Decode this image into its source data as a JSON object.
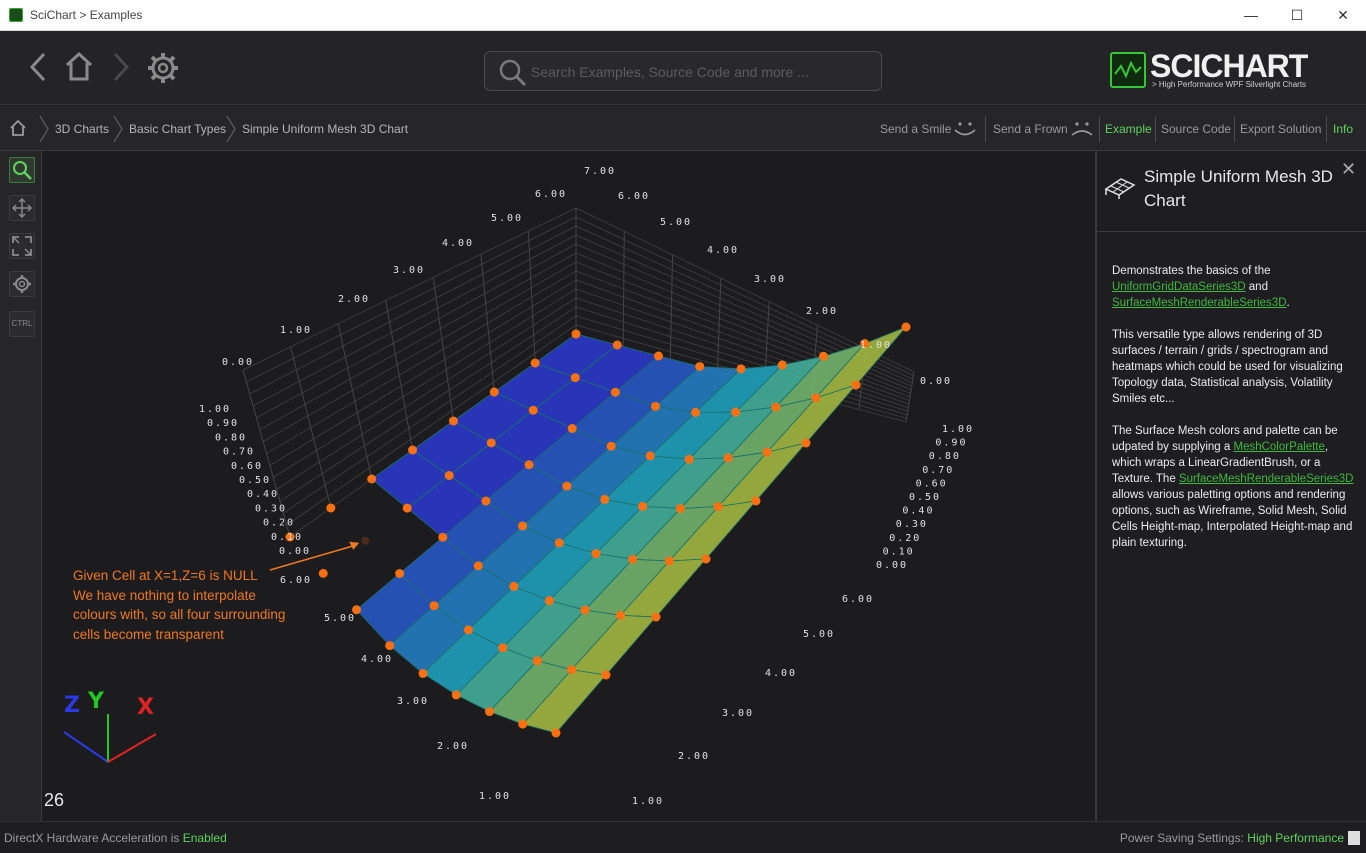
{
  "window": {
    "title": "SciChart > Examples",
    "minimize": "—",
    "maximize": "☐",
    "close": "✕"
  },
  "search": {
    "placeholder": "Search Examples, Source Code and more ..."
  },
  "logo": {
    "word": "SCICHART",
    "tagline": "> High Performance WPF Silverlight Charts"
  },
  "breadcrumb": {
    "items": [
      "3D Charts",
      "Basic Chart Types",
      "Simple Uniform Mesh 3D Chart"
    ]
  },
  "actions": {
    "send_smile": "Send a Smile",
    "send_frown": "Send a Frown",
    "example": "Example",
    "source_code": "Source Code",
    "export_solution": "Export Solution",
    "info": "Info"
  },
  "tools": {
    "ctrl_label": "CTRL"
  },
  "info_panel": {
    "title": "Simple Uniform Mesh 3D Chart",
    "close": "✕",
    "p1_a": "Demonstrates the basics of the ",
    "p1_link1": "UniformGridDataSeries3D",
    "p1_b": " and ",
    "p1_link2": "SurfaceMeshRenderableSeries3D",
    "p1_c": ".",
    "p2": "This versatile type allows rendering of 3D surfaces / terrain / grids / spectrogram and heatmaps which could be used for visualizing Topology data, Statistical analysis, Volatility Smiles etc...",
    "p3_a": "The Surface Mesh colors and palette can be udpated by supplying a ",
    "p3_link1": "MeshColorPalette",
    "p3_b": ", which wraps a LinearGradientBrush, or a Texture. The ",
    "p3_link2": "SurfaceMeshRenderableSeries3D",
    "p3_c": " allows various paletting options and rendering options, such as Wireframe, Solid Mesh, Solid Cells Height-map, Interpolated Height-map and plain texturing."
  },
  "annotation": {
    "lines": [
      "Given Cell at X=1,Z=6 is NULL",
      "We have nothing to interpolate",
      "colours with, so all four surrounding",
      "cells become transparent"
    ]
  },
  "fps": "26",
  "status": {
    "left_label": "DirectX Hardware Acceleration is ",
    "left_value": "Enabled",
    "right_label": "Power Saving Settings: ",
    "right_value": "High Performance"
  },
  "axes": {
    "z_labels_back_left": [
      "0.00",
      "1.00",
      "2.00",
      "3.00",
      "4.00",
      "5.00",
      "6.00"
    ],
    "x_labels_back_right": [
      "7.00",
      "6.00",
      "5.00",
      "4.00",
      "3.00",
      "2.00",
      "1.00",
      "0.00"
    ],
    "y_labels_left": [
      "1.00",
      "0.90",
      "0.80",
      "0.70",
      "0.60",
      "0.50",
      "0.40",
      "0.30",
      "0.20",
      "0.10",
      "0.00"
    ],
    "y_labels_right": [
      "1.00",
      "0.90",
      "0.80",
      "0.70",
      "0.60",
      "0.50",
      "0.40",
      "0.30",
      "0.20",
      "0.10",
      "0.00"
    ],
    "z_labels_front": [
      "6.00",
      "5.00",
      "4.00",
      "3.00",
      "2.00",
      "1.00"
    ],
    "x_labels_front": [
      "6.00",
      "5.00",
      "4.00",
      "3.00",
      "2.00",
      "1.00"
    ],
    "gizmo": {
      "z": "Z",
      "y": "Y",
      "x": "X"
    }
  },
  "colors": {
    "accent": "#5fd35f",
    "marker": "#ff7010",
    "annotation": "#f07820",
    "mesh_low": "#2a3ad8",
    "mesh_mid": "#1fb8c8",
    "mesh_high": "#c8c82a"
  }
}
